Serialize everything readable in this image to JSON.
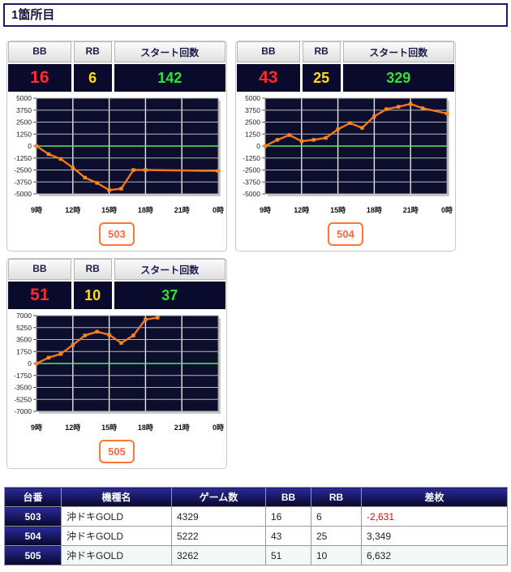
{
  "page": {
    "title": "1箇所目"
  },
  "colors": {
    "navy": "#0a0a2c",
    "accent_orange": "#f7761b",
    "marker_orange": "#f78a1b",
    "stat_red": "#ff2a2a",
    "stat_yellow": "#ffe000",
    "stat_green": "#2ee52e",
    "zero_line_green": "#5ce65c",
    "plot_bg": "#0d0d2e",
    "grid_h": "#b9b9b9",
    "grid_v": "#e6e6e6",
    "negative_red": "#e60000"
  },
  "stat_labels": {
    "bb": "BB",
    "rb": "RB",
    "start": "スタート回数"
  },
  "panels": [
    {
      "machine_no": "503",
      "bb": "16",
      "rb": "6",
      "start": "142"
    },
    {
      "machine_no": "504",
      "bb": "43",
      "rb": "25",
      "start": "329"
    },
    {
      "machine_no": "505",
      "bb": "51",
      "rb": "10",
      "start": "37"
    }
  ],
  "chart_data": [
    {
      "type": "line",
      "machine": "503",
      "x_hours": [
        9,
        10,
        11,
        12,
        13,
        14,
        15,
        16,
        17,
        18,
        24
      ],
      "values": [
        0,
        -850,
        -1350,
        -2250,
        -3300,
        -3850,
        -4600,
        -4450,
        -2500,
        -2500,
        -2600
      ],
      "ylim": [
        -5000,
        5000
      ],
      "yticks": [
        5000,
        3750,
        2500,
        1250,
        0,
        -1250,
        -2500,
        -3750,
        -5000
      ],
      "xticks": [
        {
          "t": 9,
          "label": "9時"
        },
        {
          "t": 12,
          "label": "12時"
        },
        {
          "t": 15,
          "label": "15時"
        },
        {
          "t": 18,
          "label": "18時"
        },
        {
          "t": 21,
          "label": "21時"
        },
        {
          "t": 24,
          "label": "0時"
        }
      ],
      "zero_line": true,
      "legend": "none",
      "grid": true
    },
    {
      "type": "line",
      "machine": "504",
      "x_hours": [
        9,
        10,
        11,
        12,
        13,
        14,
        15,
        16,
        17,
        18,
        19,
        20,
        21,
        22,
        24
      ],
      "values": [
        0,
        650,
        1150,
        500,
        650,
        850,
        1750,
        2400,
        1900,
        3100,
        3850,
        4100,
        4400,
        3950,
        3400
      ],
      "ylim": [
        -5000,
        5000
      ],
      "yticks": [
        5000,
        3750,
        2500,
        1250,
        0,
        -1250,
        -2500,
        -3750,
        -5000
      ],
      "xticks": [
        {
          "t": 9,
          "label": "9時"
        },
        {
          "t": 12,
          "label": "12時"
        },
        {
          "t": 15,
          "label": "15時"
        },
        {
          "t": 18,
          "label": "18時"
        },
        {
          "t": 21,
          "label": "21時"
        },
        {
          "t": 24,
          "label": "0時"
        }
      ],
      "zero_line": true,
      "legend": "none",
      "grid": true
    },
    {
      "type": "line",
      "machine": "505",
      "x_hours": [
        9,
        10,
        11,
        12,
        13,
        14,
        15,
        16,
        17,
        18,
        19
      ],
      "values": [
        0,
        850,
        1400,
        2700,
        4100,
        4650,
        4200,
        3000,
        4100,
        6450,
        6700
      ],
      "ylim": [
        -7000,
        7000
      ],
      "yticks": [
        7000,
        5250,
        3500,
        1750,
        0,
        -1750,
        -3500,
        -5250,
        -7000
      ],
      "xticks": [
        {
          "t": 9,
          "label": "9時"
        },
        {
          "t": 12,
          "label": "12時"
        },
        {
          "t": 15,
          "label": "15時"
        },
        {
          "t": 18,
          "label": "18時"
        },
        {
          "t": 21,
          "label": "21時"
        },
        {
          "t": 24,
          "label": "0時"
        }
      ],
      "zero_line": true,
      "legend": "none",
      "grid": true
    }
  ],
  "table": {
    "headers": [
      "台番",
      "機種名",
      "ゲーム数",
      "BB",
      "RB",
      "差枚"
    ],
    "rows": [
      {
        "dai": "503",
        "model": "沖ドキGOLD",
        "games": "4329",
        "bb": "16",
        "rb": "6",
        "diff": "-2,631"
      },
      {
        "dai": "504",
        "model": "沖ドキGOLD",
        "games": "5222",
        "bb": "43",
        "rb": "25",
        "diff": "3,349"
      },
      {
        "dai": "505",
        "model": "沖ドキGOLD",
        "games": "3262",
        "bb": "51",
        "rb": "10",
        "diff": "6,632"
      }
    ]
  }
}
